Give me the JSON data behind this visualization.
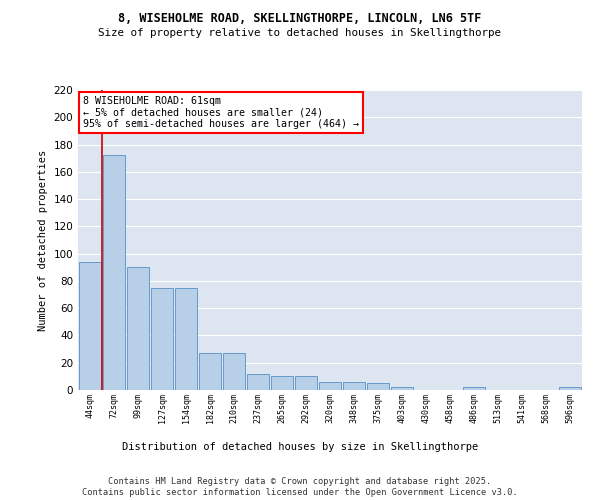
{
  "title1": "8, WISEHOLME ROAD, SKELLINGTHORPE, LINCOLN, LN6 5TF",
  "title2": "Size of property relative to detached houses in Skellingthorpe",
  "xlabel": "Distribution of detached houses by size in Skellingthorpe",
  "ylabel": "Number of detached properties",
  "categories": [
    "44sqm",
    "72sqm",
    "99sqm",
    "127sqm",
    "154sqm",
    "182sqm",
    "210sqm",
    "237sqm",
    "265sqm",
    "292sqm",
    "320sqm",
    "348sqm",
    "375sqm",
    "403sqm",
    "430sqm",
    "458sqm",
    "486sqm",
    "513sqm",
    "541sqm",
    "568sqm",
    "596sqm"
  ],
  "values": [
    94,
    172,
    90,
    75,
    75,
    27,
    27,
    12,
    10,
    10,
    6,
    6,
    5,
    2,
    0,
    0,
    2,
    0,
    0,
    0,
    2
  ],
  "bar_color": "#b8cfe8",
  "bar_edge_color": "#6699cc",
  "annotation_line_color": "#cc0000",
  "annotation_box_text": "8 WISEHOLME ROAD: 61sqm\n← 5% of detached houses are smaller (24)\n95% of semi-detached houses are larger (464) →",
  "bg_color": "#dde6f0",
  "footer_text": "Contains HM Land Registry data © Crown copyright and database right 2025.\nContains public sector information licensed under the Open Government Licence v3.0.",
  "ylim": [
    0,
    220
  ],
  "yticks": [
    0,
    20,
    40,
    60,
    80,
    100,
    120,
    140,
    160,
    180,
    200,
    220
  ]
}
